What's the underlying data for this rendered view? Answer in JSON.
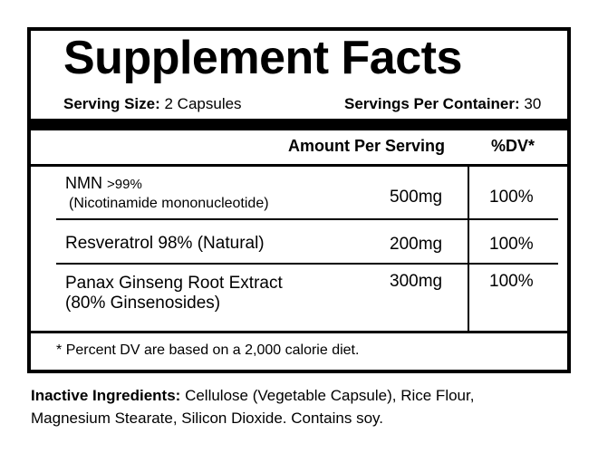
{
  "header": {
    "title": "Supplement Facts",
    "serving_size_label": "Serving Size:",
    "serving_size": "2 Capsules",
    "servings_label": "Servings Per Container:",
    "servings": "30"
  },
  "table": {
    "columns": [
      "Amount Per Serving",
      "%DV*"
    ],
    "rows": [
      {
        "name": "NMN",
        "purity": ">99%",
        "note": "(Nicotinamide mononucleotide)",
        "amount": "500mg",
        "dv": "100%"
      },
      {
        "name": "Resveratrol 98% (Natural)",
        "amount": "200mg",
        "dv": "100%"
      },
      {
        "name": "Panax Ginseng Root Extract",
        "note": "(80% Ginsenosides)",
        "amount": "300mg",
        "dv": "100%"
      }
    ]
  },
  "footnote": {
    "marker": "*",
    "text": "Percent DV are based on a 2,000 calorie diet."
  },
  "inactive": {
    "label": "Inactive Ingredients:",
    "text": "Cellulose (Vegetable Capsule), Rice Flour, Magnesium Stearate, Silicon Dioxide. Contains soy."
  }
}
